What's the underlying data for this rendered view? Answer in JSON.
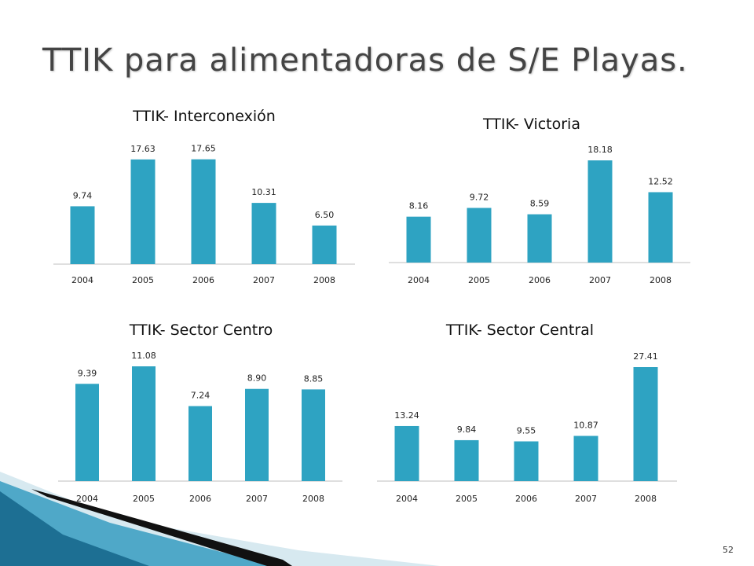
{
  "slide": {
    "title": "TTIK para alimentadoras de S/E Playas.",
    "page_number": "52"
  },
  "colors": {
    "bar": "#2ea3c2",
    "title": "#444444",
    "axis": "#bfbfbf"
  },
  "chart_data": [
    {
      "type": "bar",
      "title": "TTIK- Interconexión",
      "categories": [
        "2004",
        "2005",
        "2006",
        "2007",
        "2008"
      ],
      "values": [
        9.74,
        17.63,
        17.65,
        10.31,
        6.5
      ],
      "value_labels": [
        "9.74",
        "17.63",
        "17.65",
        "10.31",
        "6.50"
      ],
      "ylim": [
        0,
        18
      ],
      "grid": false,
      "legend": "none"
    },
    {
      "type": "bar",
      "title": "TTIK- Victoria",
      "categories": [
        "2004",
        "2005",
        "2006",
        "2007",
        "2008"
      ],
      "values": [
        8.16,
        9.72,
        8.59,
        18.18,
        12.52
      ],
      "value_labels": [
        "8.16",
        "9.72",
        "8.59",
        "18.18",
        "12.52"
      ],
      "ylim": [
        0,
        18.18
      ],
      "grid": false,
      "legend": "none"
    },
    {
      "type": "bar",
      "title": "TTIK- Sector Centro",
      "categories": [
        "2004",
        "2005",
        "2006",
        "2007",
        "2008"
      ],
      "values": [
        9.39,
        11.08,
        7.24,
        8.9,
        8.85
      ],
      "value_labels": [
        "9.39",
        "11.08",
        "7.24",
        "8.90",
        "8.85"
      ],
      "ylim": [
        0,
        11.08
      ],
      "grid": false,
      "legend": "none"
    },
    {
      "type": "bar",
      "title": "TTIK- Sector Central",
      "categories": [
        "2004",
        "2005",
        "2006",
        "2007",
        "2008"
      ],
      "values": [
        13.24,
        9.84,
        9.55,
        10.87,
        27.41
      ],
      "value_labels": [
        "13.24",
        "9.84",
        "9.55",
        "10.87",
        "27.41"
      ],
      "ylim": [
        0,
        27.41
      ],
      "grid": false,
      "legend": "none"
    }
  ]
}
